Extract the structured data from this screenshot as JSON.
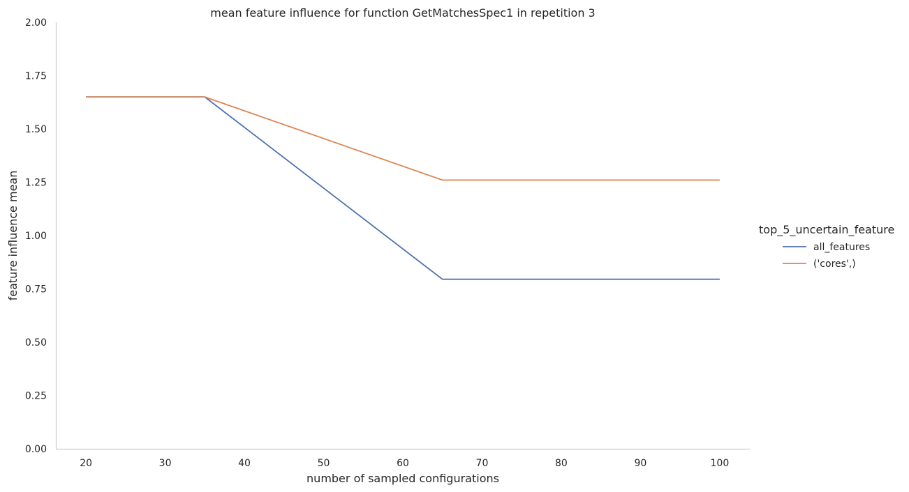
{
  "chart_data": {
    "type": "line",
    "title": "mean feature influence for function GetMatchesSpec1 in repetition 3",
    "xlabel": "number of sampled configurations",
    "ylabel": "feature influence mean",
    "xlim": [
      16.2,
      103.8
    ],
    "ylim": [
      0,
      2
    ],
    "xticks": [
      20,
      30,
      40,
      50,
      60,
      70,
      80,
      90,
      100
    ],
    "xtick_labels": [
      "20",
      "30",
      "40",
      "50",
      "60",
      "70",
      "80",
      "90",
      "100"
    ],
    "yticks": [
      0,
      0.25,
      0.5,
      0.75,
      1.0,
      1.25,
      1.5,
      1.75,
      2.0
    ],
    "ytick_labels": [
      "0.00",
      "0.25",
      "0.50",
      "0.75",
      "1.00",
      "1.25",
      "1.50",
      "1.75",
      "2.00"
    ],
    "grid": false,
    "legend": {
      "title": "top_5_uncertain_feature",
      "position": "right"
    },
    "series": [
      {
        "name": "all_features",
        "color": "#4c72b0",
        "x": [
          20,
          35,
          65,
          100
        ],
        "y": [
          1.65,
          1.65,
          0.795,
          0.795
        ]
      },
      {
        "name": "('cores',)",
        "color": "#dd8452",
        "x": [
          20,
          35,
          65,
          100
        ],
        "y": [
          1.65,
          1.65,
          1.26,
          1.26
        ]
      }
    ]
  }
}
